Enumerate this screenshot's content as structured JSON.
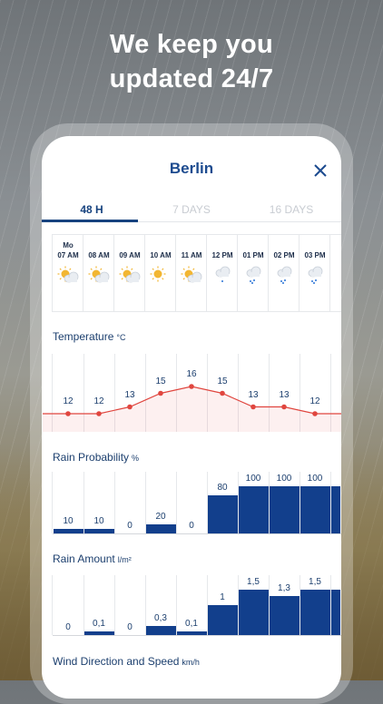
{
  "headline": {
    "line1": "We keep you",
    "line2": "updated 24/7"
  },
  "city": "Berlin",
  "tabs": [
    "48 H",
    "7 DAYS",
    "16 DAYS"
  ],
  "active_tab": "48 H",
  "hours": [
    {
      "day": "Mo",
      "time": "07 AM",
      "icon": "sun-cloud-icon"
    },
    {
      "day": "",
      "time": "08 AM",
      "icon": "sun-cloud-icon"
    },
    {
      "day": "",
      "time": "09 AM",
      "icon": "sun-cloud-icon"
    },
    {
      "day": "",
      "time": "10 AM",
      "icon": "sun-icon"
    },
    {
      "day": "",
      "time": "11 AM",
      "icon": "sun-cloud-icon"
    },
    {
      "day": "",
      "time": "12 PM",
      "icon": "cloud-light-rain-icon"
    },
    {
      "day": "",
      "time": "01 PM",
      "icon": "cloud-rain-icon"
    },
    {
      "day": "",
      "time": "02 PM",
      "icon": "cloud-rain-icon"
    },
    {
      "day": "",
      "time": "03 PM",
      "icon": "cloud-rain-icon"
    }
  ],
  "temperature": {
    "label": "Temperature",
    "unit": "°C",
    "values": [
      12,
      12,
      13,
      15,
      16,
      15,
      13,
      13,
      12
    ]
  },
  "rain_probability": {
    "label": "Rain Probability",
    "unit": "%",
    "values": [
      10,
      10,
      0,
      20,
      0,
      80,
      100,
      100,
      100
    ]
  },
  "rain_amount": {
    "label": "Rain Amount",
    "unit": "l/m²",
    "values": [
      0,
      0.1,
      0,
      0.3,
      0.1,
      1,
      1.5,
      1.3,
      1.5
    ],
    "labels": [
      "0",
      "0,1",
      "0",
      "0,3",
      "0,1",
      "1",
      "1,5",
      "1,3",
      "1,5"
    ]
  },
  "wind": {
    "label": "Wind Direction and Speed",
    "unit": "km/h"
  },
  "colors": {
    "brand": "#123f8c",
    "temp_line": "#e0463f",
    "text": "#1c3f6e"
  }
}
